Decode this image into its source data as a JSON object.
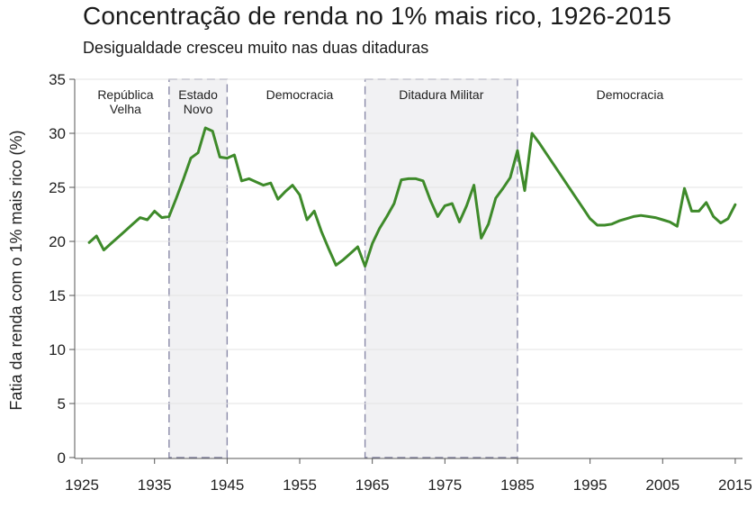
{
  "chart_data": {
    "type": "line",
    "title": "Concentração de renda no 1% mais rico, 1926-2015",
    "subtitle": "Desigualdade cresceu muito nas duas ditaduras",
    "xlabel": "",
    "ylabel": "Fatia da renda com o 1% mais rico (%)",
    "xlim": [
      1924,
      2016
    ],
    "ylim": [
      0,
      35
    ],
    "xticks": [
      1925,
      1935,
      1945,
      1955,
      1965,
      1975,
      1985,
      1995,
      2005,
      2015
    ],
    "yticks": [
      0,
      5,
      10,
      15,
      20,
      25,
      30,
      35
    ],
    "grid": "horizontal",
    "series_color": "#3e8a2a",
    "shaded_periods": [
      {
        "label": "Estado Novo",
        "start": 1937,
        "end": 1945
      },
      {
        "label": "Ditadura Militar",
        "start": 1964,
        "end": 1985
      }
    ],
    "period_labels": [
      {
        "label": "República Velha",
        "center": 1931
      },
      {
        "label": "Estado Novo",
        "center": 1941
      },
      {
        "label": "Democracia",
        "center": 1955
      },
      {
        "label": "Ditadura Militar",
        "center": 1974.5
      },
      {
        "label": "Democracia",
        "center": 2000.5
      }
    ],
    "series": [
      {
        "x": [
          1926,
          1927,
          1928,
          1929,
          1930,
          1931,
          1932,
          1933,
          1934,
          1935,
          1936,
          1937,
          1938,
          1939,
          1940,
          1941,
          1942,
          1943,
          1944,
          1945,
          1946,
          1947,
          1948,
          1949,
          1950,
          1951,
          1952,
          1953,
          1954,
          1955,
          1956,
          1957,
          1958,
          1959,
          1960,
          1961,
          1962,
          1963,
          1964,
          1965,
          1966,
          1967,
          1968,
          1969,
          1970,
          1971,
          1972,
          1973,
          1974,
          1975,
          1976,
          1977,
          1978,
          1979,
          1980,
          1981,
          1982,
          1983,
          1984,
          1985,
          1986,
          1987,
          1988,
          1989,
          1990,
          1991,
          1992,
          1993,
          1994,
          1995,
          1996,
          1997,
          1998,
          1999,
          2000,
          2001,
          2002,
          2003,
          2004,
          2005,
          2006,
          2007,
          2008,
          2009,
          2010,
          2011,
          2012,
          2013,
          2014,
          2015
        ],
        "values": [
          19.9,
          20.5,
          19.2,
          19.8,
          20.4,
          21.0,
          21.6,
          22.2,
          22.0,
          22.8,
          22.2,
          22.3,
          24.0,
          25.8,
          27.7,
          28.2,
          30.5,
          30.2,
          27.8,
          27.7,
          28.0,
          25.6,
          25.8,
          25.5,
          25.2,
          25.4,
          23.9,
          24.6,
          25.2,
          24.3,
          22.0,
          22.8,
          20.9,
          19.3,
          17.8,
          18.3,
          18.9,
          19.5,
          17.7,
          19.8,
          21.2,
          22.3,
          23.5,
          25.7,
          25.8,
          25.8,
          25.6,
          23.8,
          22.3,
          23.3,
          23.5,
          21.8,
          23.3,
          25.2,
          20.3,
          21.6,
          24.0,
          24.9,
          25.9,
          28.4,
          24.7,
          30.0,
          29.1,
          28.1,
          27.1,
          26.1,
          25.1,
          24.1,
          23.1,
          22.1,
          21.5,
          21.5,
          21.6,
          21.9,
          22.1,
          22.3,
          22.4,
          22.3,
          22.2,
          22.0,
          21.8,
          21.4,
          24.9,
          22.8,
          22.8,
          23.6,
          22.3,
          21.7,
          22.1,
          23.4
        ]
      }
    ]
  }
}
